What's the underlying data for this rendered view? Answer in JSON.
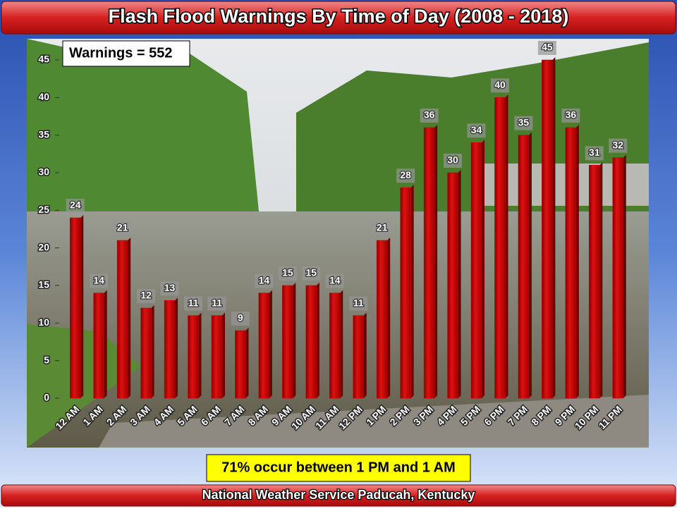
{
  "chart_data": {
    "type": "bar",
    "title": "Flash Flood Warnings By Time of Day (2008 - 2018)",
    "annotation": "Warnings = 552",
    "note": "71% occur between 1 PM and 1 AM",
    "footer": "National Weather Service Paducah,  Kentucky",
    "categories": [
      "12 AM",
      "1 AM",
      "2 AM",
      "3 AM",
      "4 AM",
      "5 AM",
      "6 AM",
      "7 AM",
      "8 AM",
      "9 AM",
      "10 AM",
      "11 AM",
      "12 PM",
      "1 PM",
      "2 PM",
      "3 PM",
      "4 PM",
      "5 PM",
      "6 PM",
      "7 PM",
      "8 PM",
      "9 PM",
      "10 PM",
      "11 PM"
    ],
    "values": [
      24,
      14,
      21,
      12,
      13,
      11,
      11,
      9,
      14,
      15,
      15,
      14,
      11,
      21,
      28,
      36,
      30,
      34,
      40,
      35,
      45,
      36,
      31,
      32
    ],
    "color": "#cc0000",
    "ylim": [
      0,
      45
    ],
    "yticks": [
      0,
      5,
      10,
      15,
      20,
      25,
      30,
      35,
      40,
      45
    ]
  }
}
